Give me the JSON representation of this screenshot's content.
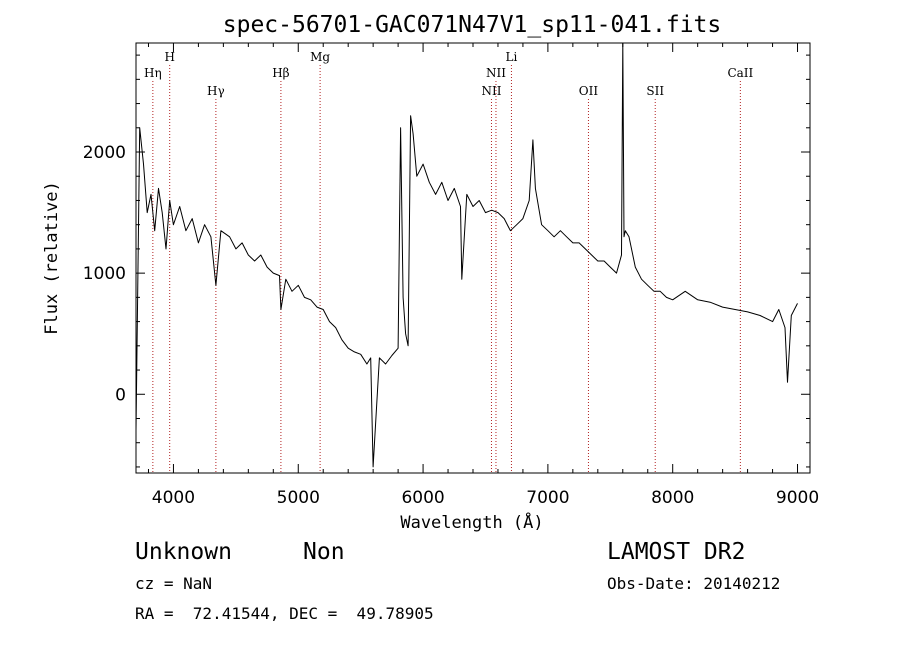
{
  "chart_data": {
    "type": "line",
    "title": "spec-56701-GAC071N47V1_sp11-041.fits",
    "xlabel": "Wavelength (Å)",
    "ylabel": "Flux (relative)",
    "xlim": [
      3700,
      9100
    ],
    "ylim": [
      -650,
      2900
    ],
    "xticks": [
      4000,
      5000,
      6000,
      7000,
      8000,
      9000
    ],
    "yticks": [
      0,
      1000,
      2000
    ],
    "grid": false,
    "series": [
      {
        "color": "#000000",
        "x": [
          3700,
          3730,
          3760,
          3790,
          3820,
          3850,
          3880,
          3910,
          3940,
          3970,
          4000,
          4050,
          4100,
          4150,
          4200,
          4250,
          4300,
          4340,
          4380,
          4450,
          4500,
          4550,
          4600,
          4650,
          4700,
          4750,
          4800,
          4850,
          4861,
          4900,
          4950,
          5000,
          5050,
          5100,
          5150,
          5200,
          5250,
          5300,
          5350,
          5400,
          5450,
          5500,
          5550,
          5580,
          5600,
          5650,
          5700,
          5750,
          5800,
          5820,
          5840,
          5860,
          5880,
          5900,
          5920,
          5950,
          6000,
          6050,
          6100,
          6150,
          6200,
          6250,
          6300,
          6310,
          6350,
          6400,
          6450,
          6500,
          6550,
          6600,
          6650,
          6700,
          6750,
          6800,
          6850,
          6880,
          6900,
          6950,
          7000,
          7050,
          7100,
          7150,
          7200,
          7250,
          7300,
          7350,
          7400,
          7450,
          7500,
          7550,
          7590,
          7600,
          7610,
          7620,
          7650,
          7700,
          7750,
          7800,
          7850,
          7900,
          7950,
          8000,
          8100,
          8200,
          8300,
          8400,
          8500,
          8600,
          8700,
          8800,
          8850,
          8900,
          8920,
          8950,
          9000
        ],
        "y": [
          -300,
          2200,
          1900,
          1500,
          1650,
          1350,
          1700,
          1500,
          1200,
          1600,
          1400,
          1550,
          1350,
          1450,
          1250,
          1400,
          1300,
          900,
          1350,
          1300,
          1200,
          1250,
          1150,
          1100,
          1150,
          1050,
          1000,
          980,
          700,
          950,
          850,
          900,
          800,
          780,
          720,
          700,
          600,
          550,
          450,
          380,
          350,
          330,
          250,
          300,
          -600,
          300,
          250,
          320,
          380,
          2200,
          800,
          500,
          400,
          2300,
          2150,
          1800,
          1900,
          1750,
          1650,
          1750,
          1600,
          1700,
          1550,
          950,
          1650,
          1550,
          1600,
          1500,
          1520,
          1500,
          1450,
          1350,
          1400,
          1450,
          1600,
          2100,
          1700,
          1400,
          1350,
          1300,
          1350,
          1300,
          1250,
          1250,
          1200,
          1150,
          1100,
          1100,
          1050,
          1000,
          1150,
          2900,
          1300,
          1350,
          1300,
          1050,
          950,
          900,
          850,
          850,
          800,
          780,
          850,
          780,
          760,
          720,
          700,
          680,
          650,
          600,
          700,
          550,
          100,
          650,
          750
        ]
      }
    ],
    "lines": [
      {
        "label": "Hη",
        "x": 3835,
        "row": 1
      },
      {
        "label": "H",
        "x": 3970,
        "row": 0
      },
      {
        "label": "Hγ",
        "x": 4340,
        "row": 2
      },
      {
        "label": "Hβ",
        "x": 4861,
        "row": 1
      },
      {
        "label": "Mg",
        "x": 5175,
        "row": 0
      },
      {
        "label": "NII",
        "x": 6548,
        "row": 2
      },
      {
        "label": "NII",
        "x": 6584,
        "row": 1
      },
      {
        "label": "Li",
        "x": 6708,
        "row": 0
      },
      {
        "label": "OII",
        "x": 7325,
        "row": 2
      },
      {
        "label": "SII",
        "x": 7860,
        "row": 2
      },
      {
        "label": "CaII",
        "x": 8542,
        "row": 1
      }
    ]
  },
  "footer": {
    "class_label": "Unknown",
    "subclass_label": "Non",
    "survey": "LAMOST DR2",
    "cz": "cz = NaN",
    "obs_date": "Obs-Date: 20140212",
    "coords": "RA =  72.41544, DEC =  49.78905"
  },
  "colors": {
    "spectrum": "#000000",
    "line_marker": "#b22222"
  }
}
